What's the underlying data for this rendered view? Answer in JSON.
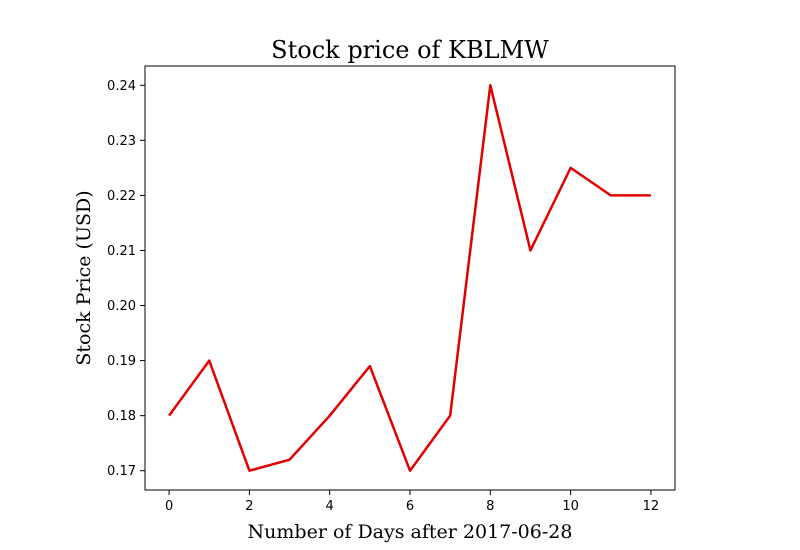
{
  "chart_data": {
    "type": "line",
    "title": "Stock price of KBLMW",
    "xlabel": "Number of Days after 2017-06-28",
    "ylabel": "Stock Price (USD)",
    "x": [
      0,
      1,
      2,
      3,
      4,
      5,
      6,
      7,
      8,
      9,
      10,
      11,
      12
    ],
    "series": [
      {
        "values": [
          0.18,
          0.19,
          0.17,
          0.172,
          0.18,
          0.189,
          0.17,
          0.18,
          0.24,
          0.21,
          0.225,
          0.22,
          0.22
        ],
        "color": "#e00000"
      }
    ],
    "xlim": [
      -0.6,
      12.6
    ],
    "ylim": [
      0.1665,
      0.2435
    ],
    "xticks": [
      0,
      2,
      4,
      6,
      8,
      10,
      12
    ],
    "xtick_labels": [
      "0",
      "2",
      "4",
      "6",
      "8",
      "10",
      "12"
    ],
    "yticks": [
      0.17,
      0.18,
      0.19,
      0.2,
      0.21,
      0.22,
      0.23,
      0.24
    ],
    "ytick_labels": [
      "0.17",
      "0.18",
      "0.19",
      "0.20",
      "0.21",
      "0.22",
      "0.23",
      "0.24"
    ],
    "grid": false
  }
}
